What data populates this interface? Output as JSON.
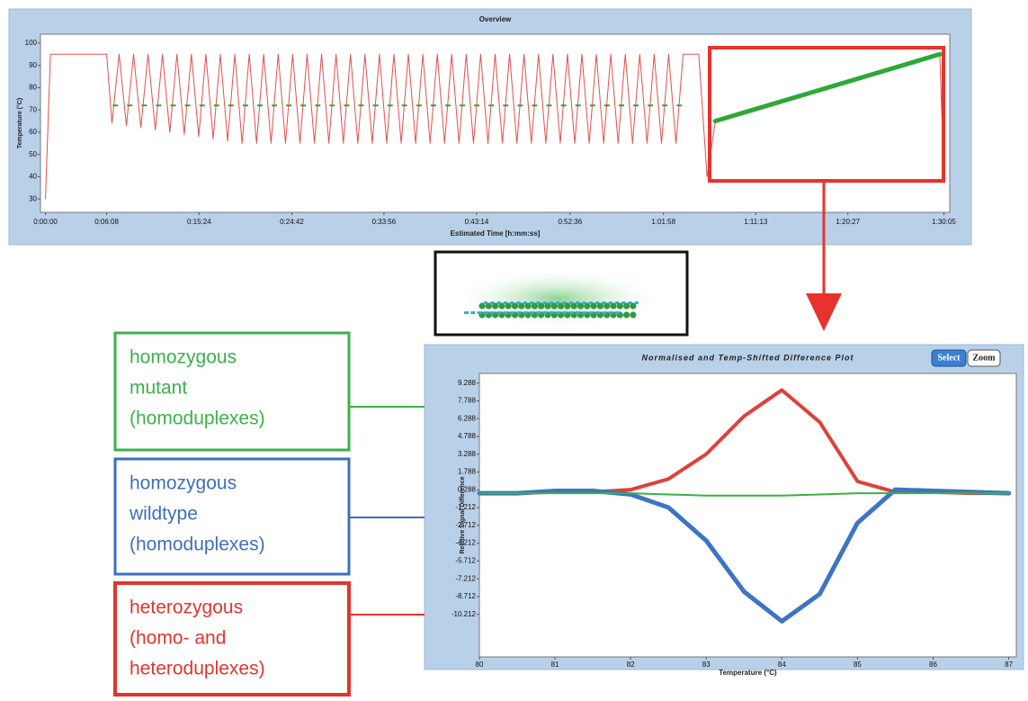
{
  "chart_data": [
    {
      "type": "line",
      "title": "Overview",
      "ylabel": "Temperature (°C)",
      "xlabel": "Estimated Time [h:mm:ss]",
      "xlim": [
        -30,
        5440
      ],
      "ylim": [
        24,
        104
      ],
      "xticks": [
        {
          "value": 0,
          "label": "0:00:00"
        },
        {
          "value": 368,
          "label": "0:06:08"
        },
        {
          "value": 924,
          "label": "0:15:24"
        },
        {
          "value": 1482,
          "label": "0:24:42"
        },
        {
          "value": 2036,
          "label": "0:33:56"
        },
        {
          "value": 2594,
          "label": "0:43:14"
        },
        {
          "value": 3156,
          "label": "0:52:36"
        },
        {
          "value": 3718,
          "label": "1:01:58"
        },
        {
          "value": 4273,
          "label": "1:11:13"
        },
        {
          "value": 4827,
          "label": "1:20:27"
        },
        {
          "value": 5405,
          "label": "1:30:05"
        }
      ],
      "yticks": [
        30,
        40,
        50,
        60,
        70,
        80,
        90,
        100
      ],
      "series": [
        {
          "color": "#e05050",
          "mode": "line",
          "width": 1,
          "x": [
            0,
            30,
            368,
            400,
            443,
            487,
            530,
            574,
            617,
            661,
            704,
            748,
            791,
            835,
            878,
            922,
            965,
            1009,
            1052,
            1096,
            1139,
            1183,
            1226,
            1270,
            1313,
            1357,
            1400,
            1444,
            1487,
            1531,
            1574,
            1618,
            1661,
            1705,
            1748,
            1792,
            1835,
            1879,
            1922,
            1966,
            2009,
            2053,
            2096,
            2140,
            2183,
            2227,
            2270,
            2314,
            2357,
            2401,
            2444,
            2488,
            2531,
            2575,
            2618,
            2662,
            2705,
            2749,
            2792,
            2836,
            2879,
            2923,
            2966,
            3010,
            3053,
            3097,
            3140,
            3184,
            3227,
            3271,
            3314,
            3358,
            3401,
            3445,
            3488,
            3532,
            3575,
            3619,
            3662,
            3706,
            3749,
            3793,
            3836,
            3930,
            3980,
            4030,
            5380,
            5405
          ],
          "values": [
            30,
            95,
            95,
            64,
            95,
            63,
            95,
            62,
            95,
            61,
            95,
            60,
            95,
            59,
            95,
            58,
            95,
            57,
            95,
            56,
            95,
            55,
            95,
            55,
            95,
            55,
            95,
            55,
            95,
            55,
            95,
            55,
            95,
            55,
            95,
            55,
            95,
            55,
            95,
            55,
            95,
            55,
            95,
            55,
            95,
            55,
            95,
            55,
            95,
            55,
            95,
            55,
            95,
            55,
            95,
            55,
            95,
            55,
            95,
            55,
            95,
            55,
            95,
            55,
            95,
            55,
            95,
            55,
            95,
            55,
            95,
            55,
            95,
            55,
            95,
            55,
            95,
            55,
            95,
            55,
            95,
            55,
            95,
            95,
            40,
            65,
            95,
            40
          ]
        },
        {
          "color": "#2ea836",
          "mode": "markers",
          "x": [
            420,
            507,
            594,
            681,
            768,
            855,
            942,
            1029,
            1116,
            1203,
            1290,
            1377,
            1464,
            1551,
            1638,
            1725,
            1812,
            1899,
            1986,
            2073,
            2160,
            2247,
            2334,
            2421,
            2508,
            2595,
            2682,
            2769,
            2856,
            2943,
            3030,
            3117,
            3204,
            3291,
            3378,
            3465,
            3552,
            3639,
            3726,
            3813
          ],
          "values": [
            72,
            72,
            72,
            72,
            72,
            72,
            72,
            72,
            72,
            72,
            72,
            72,
            72,
            72,
            72,
            72,
            72,
            72,
            72,
            72,
            72,
            72,
            72,
            72,
            72,
            72,
            72,
            72,
            72,
            72,
            72,
            72,
            72,
            72,
            72,
            72,
            72,
            72,
            72,
            72
          ]
        },
        {
          "color": "#2ea836",
          "mode": "line",
          "width": 5,
          "x": [
            4030,
            5380
          ],
          "values": [
            65,
            95
          ]
        }
      ]
    },
    {
      "type": "line",
      "title": "Normalised and Temp-Shifted Difference Plot",
      "ylabel": "Relative Signal Difference",
      "xlabel": "Temperature (°C)",
      "xlim": [
        80,
        87.1
      ],
      "ylim": [
        -13.8,
        10.1
      ],
      "xticks": [
        80,
        81,
        82,
        83,
        84,
        85,
        86,
        87
      ],
      "yticks": [
        9.288,
        7.788,
        6.288,
        4.788,
        3.288,
        1.788,
        0.288,
        -1.212,
        -2.712,
        -4.212,
        -5.712,
        -7.212,
        -8.712,
        -10.212
      ],
      "x": [
        80,
        80.5,
        81,
        81.5,
        82,
        82.5,
        83,
        83.5,
        84,
        84.5,
        85,
        85.5,
        86,
        86.5,
        87
      ],
      "series": [
        {
          "color": "#e0403c",
          "mode": "line",
          "width": 4,
          "values": [
            0,
            0,
            0.1,
            0.1,
            0.3,
            1.2,
            3.3,
            6.5,
            8.7,
            6,
            1,
            0.1,
            0.1,
            0,
            0
          ]
        },
        {
          "color": "#3f74c4",
          "mode": "line",
          "width": 5,
          "values": [
            0,
            0,
            0.2,
            0.2,
            -0.1,
            -1.2,
            -4,
            -8.3,
            -10.8,
            -8.5,
            -2.5,
            0.3,
            0.2,
            0.1,
            0
          ]
        },
        {
          "color": "#3cb043",
          "mode": "line",
          "width": 2,
          "values": [
            0,
            0,
            0,
            0,
            0,
            -0.1,
            -0.2,
            -0.2,
            -0.2,
            -0.1,
            0,
            0,
            0,
            0,
            0
          ]
        }
      ]
    }
  ],
  "buttons": [
    "Select",
    "Zoom"
  ],
  "annotations": [
    {
      "lines": [
        "homozygous",
        "mutant",
        "(homoduplexes)"
      ],
      "color": "#3db04a"
    },
    {
      "lines": [
        "homozygous",
        "wildtype",
        "(homoduplexes)"
      ],
      "color": "#3f6fb8"
    },
    {
      "lines": [
        "heterozygous",
        "(homo- and",
        "heteroduplexes)"
      ],
      "color": "#e0352f"
    }
  ]
}
